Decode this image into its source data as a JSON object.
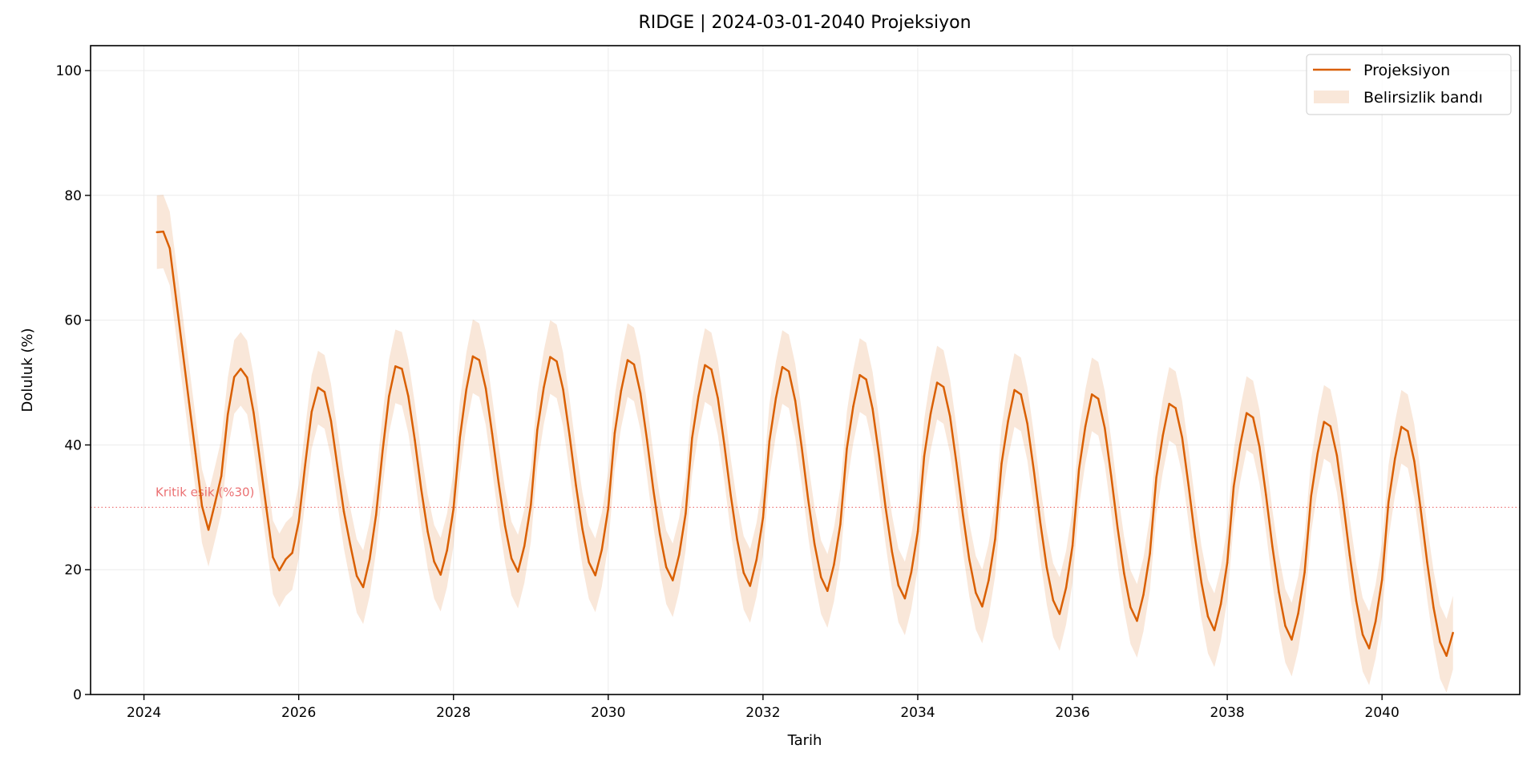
{
  "chart_data": {
    "type": "line",
    "title": "RIDGE | 2024-03-01-2040 Projeksiyon",
    "xlabel": "Tarih",
    "ylabel": "Doluluk (%)",
    "xlim": [
      2023.31,
      2041.78
    ],
    "ylim": [
      0,
      104
    ],
    "x_ticks": [
      "2024",
      "2026",
      "2028",
      "2030",
      "2032",
      "2034",
      "2036",
      "2038",
      "2040"
    ],
    "y_ticks": [
      "0",
      "20",
      "40",
      "60",
      "80",
      "100"
    ],
    "grid": true,
    "legend_position": "top-right",
    "x_start": "2024-03",
    "x_frequency": "monthly",
    "series": [
      {
        "name": "Projeksiyon",
        "color": "#d95f02",
        "values": [
          74.1,
          74.2,
          71.5,
          63.3,
          55.0,
          46.8,
          38.6,
          30.2,
          26.4,
          30.6,
          35.0,
          44.9,
          50.9,
          52.2,
          50.8,
          45.2,
          37.5,
          29.7,
          22.0,
          19.9,
          21.7,
          22.7,
          27.7,
          36.8,
          45.3,
          49.2,
          48.5,
          43.9,
          36.6,
          29.3,
          24.0,
          19.0,
          17.2,
          21.7,
          28.8,
          39.0,
          47.8,
          52.6,
          52.2,
          47.8,
          40.8,
          32.9,
          26.1,
          21.3,
          19.2,
          23.1,
          29.7,
          41.2,
          48.9,
          54.2,
          53.6,
          49.1,
          41.8,
          33.9,
          27.0,
          21.8,
          19.7,
          23.8,
          30.4,
          42.4,
          49.2,
          54.1,
          53.4,
          48.9,
          41.5,
          33.5,
          26.5,
          21.2,
          19.1,
          23.2,
          29.8,
          41.9,
          48.7,
          53.6,
          52.9,
          48.3,
          40.9,
          32.8,
          25.7,
          20.4,
          18.3,
          22.4,
          29.0,
          41.1,
          47.8,
          52.8,
          52.1,
          47.5,
          40.1,
          31.9,
          24.8,
          19.5,
          17.4,
          21.6,
          28.3,
          40.6,
          47.5,
          52.5,
          51.8,
          47.1,
          39.6,
          31.3,
          24.1,
          18.8,
          16.6,
          20.8,
          27.3,
          39.4,
          46.2,
          51.2,
          50.5,
          45.8,
          38.3,
          30.1,
          22.9,
          17.5,
          15.4,
          19.6,
          26.1,
          38.2,
          45.0,
          50.0,
          49.3,
          44.6,
          37.1,
          28.8,
          21.6,
          16.3,
          14.1,
          18.3,
          24.9,
          37.0,
          43.8,
          48.8,
          48.1,
          43.4,
          35.9,
          27.6,
          20.4,
          15.1,
          12.9,
          17.1,
          23.8,
          36.1,
          43.0,
          48.1,
          47.4,
          42.7,
          35.0,
          26.7,
          19.4,
          14.0,
          11.8,
          16.0,
          22.6,
          34.8,
          41.5,
          46.6,
          45.9,
          41.2,
          33.5,
          25.2,
          17.9,
          12.5,
          10.3,
          14.5,
          21.1,
          33.3,
          40.0,
          45.1,
          44.4,
          39.7,
          32.0,
          23.7,
          16.4,
          11.0,
          8.8,
          13.0,
          19.6,
          31.8,
          38.6,
          43.7,
          43.0,
          38.3,
          30.6,
          22.3,
          15.0,
          9.6,
          7.4,
          11.7,
          18.4,
          30.8,
          37.8,
          42.9,
          42.2,
          37.4,
          29.7,
          21.2,
          13.9,
          8.4,
          6.2,
          9.9
        ]
      }
    ],
    "uncertainty_band": {
      "name": "Belirsizlik bandı",
      "color": "#d95f02",
      "opacity": 0.15,
      "half_width": 5.9
    },
    "threshold": {
      "value": 30,
      "label": "Kritik eşik (%30)",
      "color": "#e8585a"
    }
  }
}
